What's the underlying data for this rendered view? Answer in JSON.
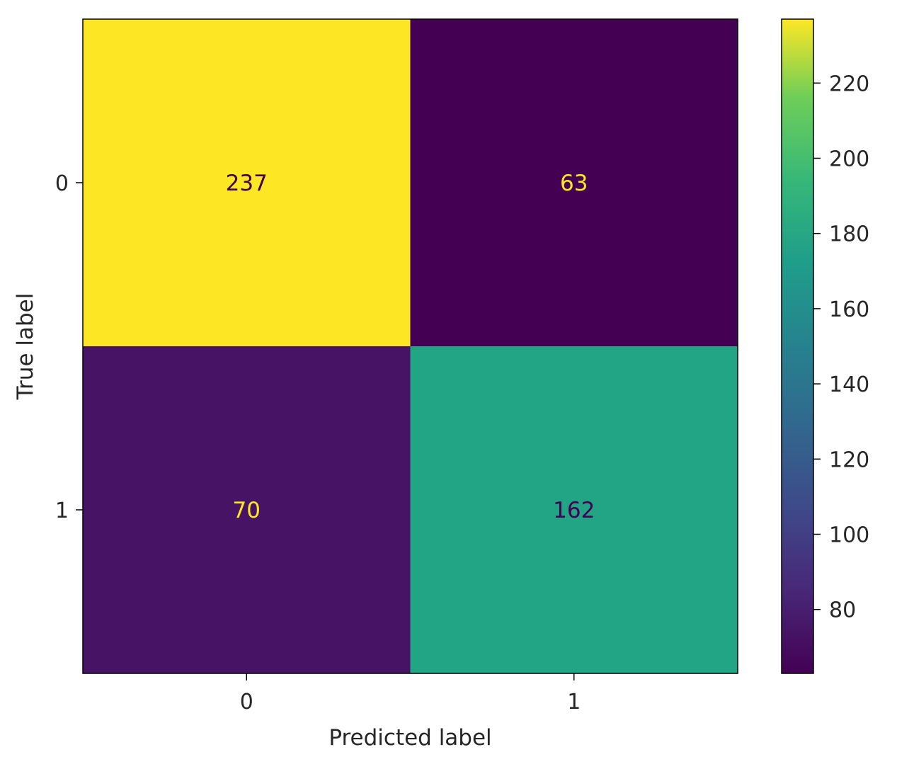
{
  "chart_data": {
    "type": "heatmap",
    "title": "",
    "xlabel": "Predicted label",
    "ylabel": "True label",
    "x_categories": [
      "0",
      "1"
    ],
    "y_categories": [
      "0",
      "1"
    ],
    "values": [
      [
        237,
        63
      ],
      [
        70,
        162
      ]
    ],
    "colormap": "viridis",
    "colorbar": {
      "min": 63,
      "max": 237,
      "ticks": [
        80,
        100,
        120,
        140,
        160,
        180,
        200,
        220
      ]
    },
    "grid": false,
    "colors": {
      "237": "#fde725",
      "63": "#440154",
      "70": "#471365",
      "162": "#21a585",
      "text_on_dark": "#fde725",
      "text_on_light": "#440154"
    }
  }
}
